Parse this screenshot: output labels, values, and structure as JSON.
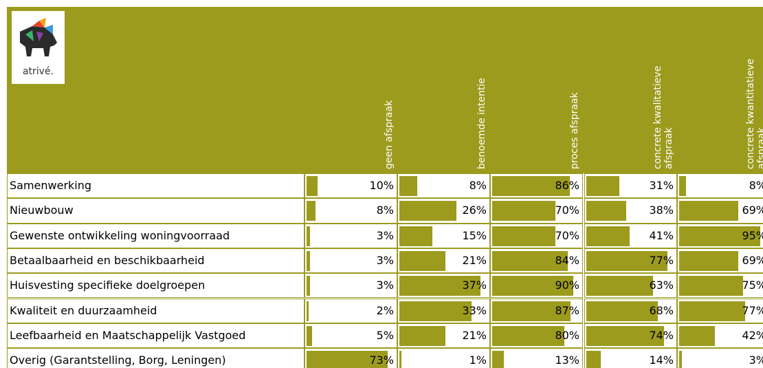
{
  "logo": {
    "text": "atrivé."
  },
  "table": {
    "columns": [
      [
        "geen afspraak"
      ],
      [
        "benoemde intentie"
      ],
      [
        "proces afspraak"
      ],
      [
        "concrete kwalitatieve",
        "afspraak"
      ],
      [
        "concrete kwantitatieve",
        "afspraak"
      ]
    ],
    "rows": [
      {
        "label": "Samenwerking",
        "values": [
          10,
          8,
          86,
          31,
          8
        ],
        "value_labels": [
          "10%",
          "8%",
          "86%",
          "31%",
          "8%"
        ]
      },
      {
        "label": "Nieuwbouw",
        "values": [
          8,
          26,
          70,
          38,
          69
        ],
        "value_labels": [
          "8%",
          "26%",
          "70%",
          "38%",
          "69%"
        ]
      },
      {
        "label": "Gewenste ontwikkeling woningvoorraad",
        "values": [
          3,
          15,
          70,
          41,
          95
        ],
        "value_labels": [
          "3%",
          "15%",
          "70%",
          "41%",
          "95%"
        ]
      },
      {
        "label": "Betaalbaarheid en beschikbaarheid",
        "values": [
          3,
          21,
          84,
          77,
          69
        ],
        "value_labels": [
          "3%",
          "21%",
          "84%",
          "77%",
          "69%"
        ]
      },
      {
        "label": "Huisvesting specifieke doelgroepen",
        "values": [
          3,
          37,
          90,
          63,
          75
        ],
        "value_labels": [
          "3%",
          "37%",
          "90%",
          "63%",
          "75%"
        ]
      },
      {
        "label": "Kwaliteit en duurzaamheid",
        "values": [
          2,
          33,
          87,
          68,
          77
        ],
        "value_labels": [
          "2%",
          "33%",
          "87%",
          "68%",
          "77%"
        ]
      },
      {
        "label": "Leefbaarheid en Maatschappelijk Vastgoed",
        "values": [
          5,
          21,
          80,
          74,
          42
        ],
        "value_labels": [
          "5%",
          "21%",
          "80%",
          "74%",
          "42%"
        ]
      },
      {
        "label": "Overig (Garantstelling, Borg, Leningen)",
        "values": [
          73,
          1,
          13,
          14,
          3
        ],
        "value_labels": [
          "73%",
          "1%",
          "13%",
          "14%",
          "3%"
        ]
      }
    ],
    "bar_color": "#9c9b1e"
  }
}
